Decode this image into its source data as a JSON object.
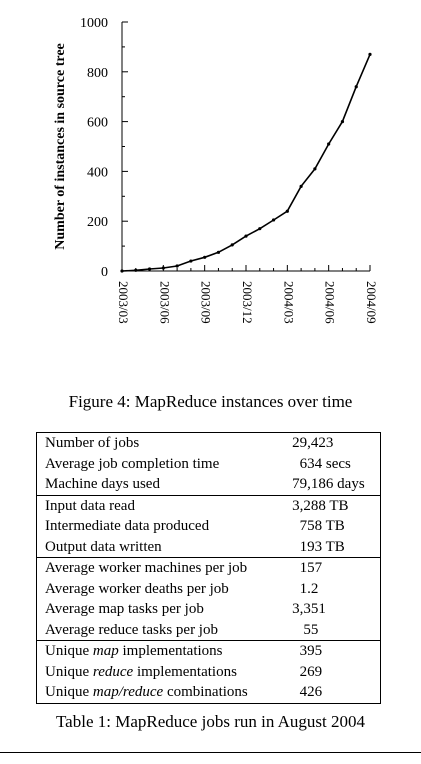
{
  "figure": {
    "caption": "Figure 4: MapReduce instances over time"
  },
  "chart_data": {
    "type": "line",
    "title": "",
    "xlabel": "",
    "ylabel": "Number of instances in source tree",
    "ylim": [
      0,
      1000
    ],
    "yticks": [
      0,
      200,
      400,
      600,
      800,
      1000
    ],
    "xticks": [
      "2003/03",
      "2003/06",
      "2003/09",
      "2003/12",
      "2004/03",
      "2004/06",
      "2004/09"
    ],
    "x_start": "2003/03",
    "x_end": "2004/09",
    "grid": false,
    "series": [
      {
        "x": [
          "2003/03",
          "2003/04",
          "2003/05",
          "2003/06",
          "2003/07",
          "2003/08",
          "2003/09",
          "2003/10",
          "2003/11",
          "2003/12",
          "2004/01",
          "2004/02",
          "2004/03",
          "2004/04",
          "2004/05",
          "2004/06",
          "2004/07",
          "2004/08",
          "2004/09"
        ],
        "values": [
          0,
          3,
          8,
          12,
          20,
          40,
          55,
          75,
          105,
          140,
          170,
          205,
          240,
          340,
          410,
          510,
          600,
          740,
          870
        ]
      }
    ]
  },
  "table": {
    "caption": "Table 1: MapReduce jobs run in August 2004",
    "groups": [
      [
        {
          "label": "Number of jobs",
          "value": "29,423    "
        },
        {
          "label": "Average job completion time",
          "value": "  634 secs"
        },
        {
          "label": "Machine days used",
          "value": "79,186 days"
        }
      ],
      [
        {
          "label": "Input data read",
          "value": "3,288 TB"
        },
        {
          "label": "Intermediate data produced",
          "value": "  758 TB"
        },
        {
          "label": "Output data written",
          "value": "  193 TB"
        }
      ],
      [
        {
          "label": "Average worker machines per job",
          "value": "  157"
        },
        {
          "label": "Average worker deaths per job",
          "value": "  1.2"
        },
        {
          "label": "Average map tasks per job",
          "value": "3,351"
        },
        {
          "label": "Average reduce tasks per job",
          "value": "   55"
        }
      ],
      [
        {
          "label_parts": [
            {
              "t": "Unique "
            },
            {
              "t": "map",
              "i": true
            },
            {
              "t": " implementations"
            }
          ],
          "value": "  395"
        },
        {
          "label_parts": [
            {
              "t": "Unique "
            },
            {
              "t": "reduce",
              "i": true
            },
            {
              "t": " implementations"
            }
          ],
          "value": "  269"
        },
        {
          "label_parts": [
            {
              "t": "Unique "
            },
            {
              "t": "map/reduce",
              "i": true
            },
            {
              "t": " combinations"
            }
          ],
          "value": "  426"
        }
      ]
    ]
  }
}
